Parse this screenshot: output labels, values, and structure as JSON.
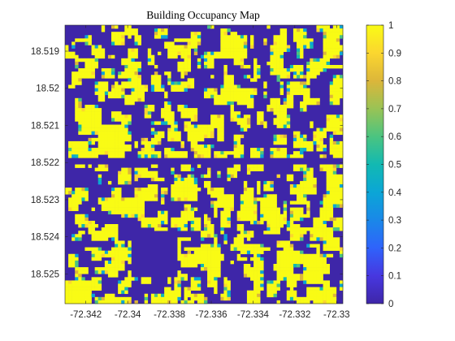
{
  "chart_data": {
    "type": "heatmap",
    "title": "Building Occupancy Map",
    "xlabel": "",
    "ylabel": "",
    "x_range": [
      -72.343,
      -72.3297
    ],
    "y_range": [
      18.5258,
      18.5183
    ],
    "y_reversed": true,
    "x_ticks": [
      -72.342,
      -72.34,
      -72.338,
      -72.336,
      -72.334,
      -72.332,
      -72.33
    ],
    "x_tick_labels": [
      "-72.342",
      "-72.34",
      "-72.338",
      "-72.336",
      "-72.334",
      "-72.332",
      "-72.33"
    ],
    "y_ticks": [
      18.519,
      18.52,
      18.521,
      18.522,
      18.523,
      18.524,
      18.525
    ],
    "y_tick_labels": [
      "18.519",
      "18.52",
      "18.521",
      "18.522",
      "18.523",
      "18.524",
      "18.525"
    ],
    "colorbar": {
      "min": 0,
      "max": 1,
      "ticks": [
        0,
        0.1,
        0.2,
        0.3,
        0.4,
        0.5,
        0.6,
        0.7,
        0.8,
        0.9,
        1
      ],
      "tick_labels": [
        "0",
        "0.1",
        "0.2",
        "0.3",
        "0.4",
        "0.5",
        "0.6",
        "0.7",
        "0.8",
        "0.9",
        "1"
      ]
    },
    "colormap": "parula",
    "colors": {
      "low": "#3e26a8",
      "high": "#f9fb15"
    },
    "background_value": 0,
    "building_value": 1,
    "grid": false,
    "legend": "colorbar-right"
  }
}
